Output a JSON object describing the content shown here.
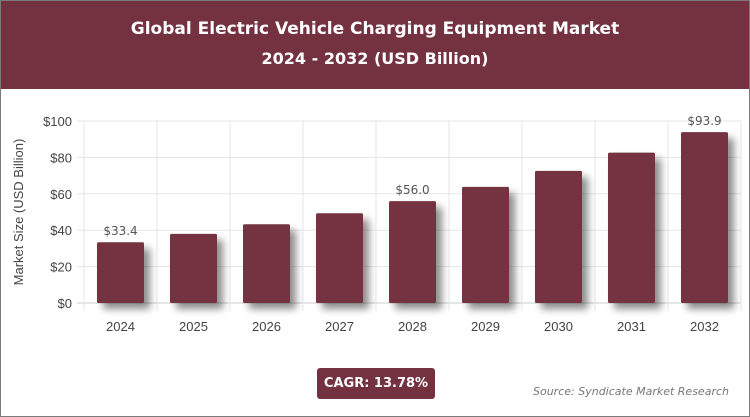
{
  "header": {
    "title": "Global Electric Vehicle Charging Equipment Market",
    "subtitle": "2024 - 2032 (USD Billion)"
  },
  "cagr_label": "CAGR: 13.78%",
  "source": "Source: Syndicate Market Research",
  "colors": {
    "bar": "#743240",
    "header": "#743240"
  },
  "chart_data": {
    "type": "bar",
    "title": "Global Electric Vehicle Charging Equipment Market",
    "subtitle": "2024 - 2032 (USD Billion)",
    "xlabel": "",
    "ylabel": "Market Size (USD Billion)",
    "categories": [
      "2024",
      "2025",
      "2026",
      "2027",
      "2028",
      "2029",
      "2030",
      "2031",
      "2032"
    ],
    "values": [
      33.4,
      38.0,
      43.3,
      49.3,
      56.0,
      63.8,
      72.6,
      82.6,
      93.9
    ],
    "data_labels": {
      "2024": "$33.4",
      "2028": "$56.0",
      "2032": "$93.9"
    },
    "ylim": [
      0,
      100
    ],
    "yticks": [
      0,
      20,
      40,
      60,
      80,
      100
    ],
    "ytick_labels": [
      "$0",
      "$20",
      "$40",
      "$60",
      "$80",
      "$100"
    ],
    "grid": true,
    "legend": "none"
  }
}
